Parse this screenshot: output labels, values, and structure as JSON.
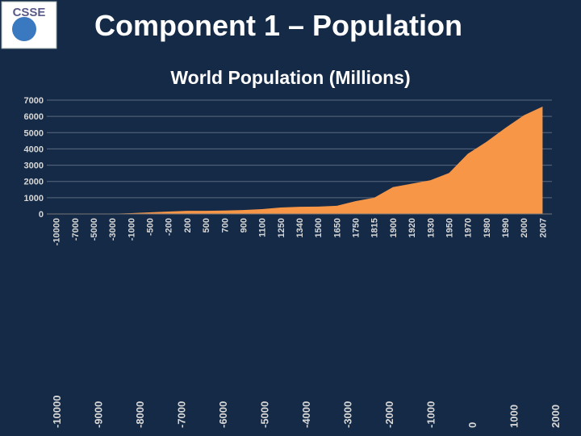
{
  "logo_text": "CSSE",
  "slide_title": "Component 1 – Population",
  "chart_data": {
    "type": "area",
    "title": "World Population (Millions)",
    "categories": [
      -10000,
      -7000,
      -5000,
      -3000,
      -1000,
      -500,
      -200,
      200,
      500,
      700,
      900,
      1100,
      1250,
      1340,
      1500,
      1650,
      1750,
      1815,
      1900,
      1920,
      1930,
      1950,
      1970,
      1980,
      1990,
      2000,
      2007
    ],
    "values": [
      1,
      5,
      5,
      14,
      50,
      100,
      150,
      190,
      190,
      210,
      240,
      300,
      400,
      440,
      450,
      500,
      790,
      1000,
      1650,
      1860,
      2070,
      2520,
      3700,
      4440,
      5280,
      6070,
      6600
    ],
    "color": "#f79646",
    "ylim": [
      0,
      7000
    ],
    "yticks": [
      0,
      1000,
      2000,
      3000,
      4000,
      5000,
      6000,
      7000
    ],
    "x2lim": [
      -10000,
      2000
    ],
    "x2ticks": [
      -10000,
      -9000,
      -8000,
      -7000,
      -6000,
      -5000,
      -4000,
      -3000,
      -2000,
      -1000,
      0,
      1000,
      2000
    ]
  }
}
